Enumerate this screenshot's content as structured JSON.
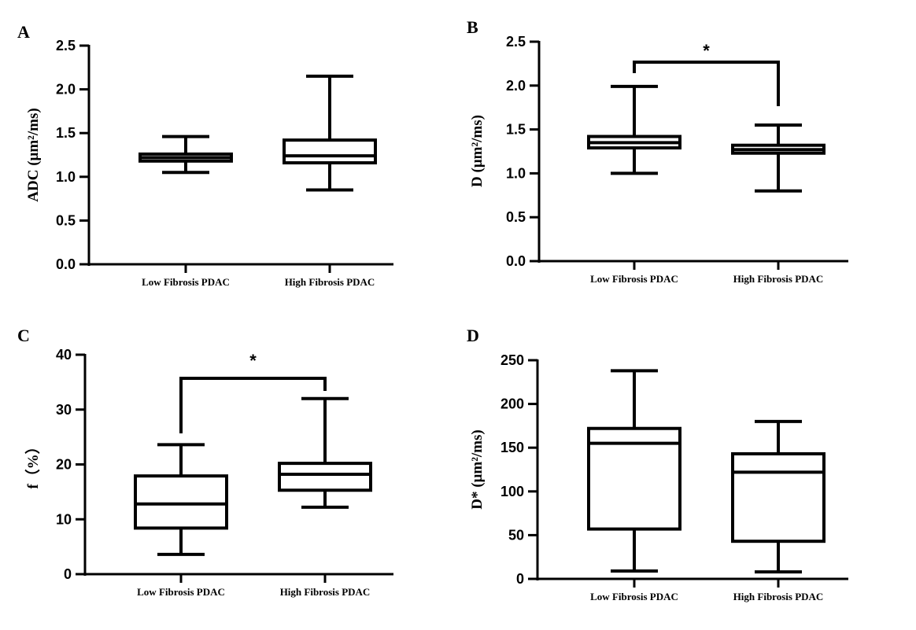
{
  "chart_data": [
    {
      "panel": "A",
      "type": "box",
      "ylabel": "ADC (μm²/ms)",
      "ylim": [
        0,
        2.5
      ],
      "yticks": [
        "0.0",
        "0.5",
        "1.0",
        "1.5",
        "2.0",
        "2.5"
      ],
      "ytick_values": [
        0,
        0.5,
        1.0,
        1.5,
        2.0,
        2.5
      ],
      "categories": [
        "Low Fibrosis PDAC",
        "High Fibrosis PDAC"
      ],
      "boxes": [
        {
          "min": 1.05,
          "q1": 1.18,
          "median": 1.22,
          "q3": 1.26,
          "max": 1.46
        },
        {
          "min": 0.85,
          "q1": 1.16,
          "median": 1.24,
          "q3": 1.42,
          "max": 2.15
        }
      ],
      "significance": ""
    },
    {
      "panel": "B",
      "type": "box",
      "ylabel": "D (μm²/ms)",
      "ylim": [
        0,
        2.5
      ],
      "yticks": [
        "0.0",
        "0.5",
        "1.0",
        "1.5",
        "2.0",
        "2.5"
      ],
      "ytick_values": [
        0,
        0.5,
        1.0,
        1.5,
        2.0,
        2.5
      ],
      "categories": [
        "Low Fibrosis PDAC",
        "High Fibrosis PDAC"
      ],
      "boxes": [
        {
          "min": 1.0,
          "q1": 1.29,
          "median": 1.35,
          "q3": 1.42,
          "max": 1.99
        },
        {
          "min": 0.8,
          "q1": 1.23,
          "median": 1.27,
          "q3": 1.32,
          "max": 1.55
        }
      ],
      "significance": "*"
    },
    {
      "panel": "C",
      "type": "box",
      "ylabel": "f（%）",
      "ylim": [
        0,
        40
      ],
      "yticks": [
        "0",
        "10",
        "20",
        "30",
        "40"
      ],
      "ytick_values": [
        0,
        10,
        20,
        30,
        40
      ],
      "categories": [
        "Low Fibrosis PDAC",
        "High Fibrosis PDAC"
      ],
      "boxes": [
        {
          "min": 3.6,
          "q1": 8.4,
          "median": 12.8,
          "q3": 17.9,
          "max": 23.6
        },
        {
          "min": 12.2,
          "q1": 15.3,
          "median": 18.2,
          "q3": 20.2,
          "max": 32.0
        }
      ],
      "significance": "*"
    },
    {
      "panel": "D",
      "type": "box",
      "ylabel": "D* (μm²/ms)",
      "ylim": [
        0,
        250
      ],
      "yticks": [
        "0",
        "50",
        "100",
        "150",
        "200",
        "250"
      ],
      "ytick_values": [
        0,
        50,
        100,
        150,
        200,
        250
      ],
      "categories": [
        "Low Fibrosis PDAC",
        "High Fibrosis PDAC"
      ],
      "boxes": [
        {
          "min": 9,
          "q1": 57,
          "median": 155,
          "q3": 172,
          "max": 238
        },
        {
          "min": 8,
          "q1": 43,
          "median": 122,
          "q3": 143,
          "max": 180
        }
      ],
      "significance": ""
    }
  ]
}
